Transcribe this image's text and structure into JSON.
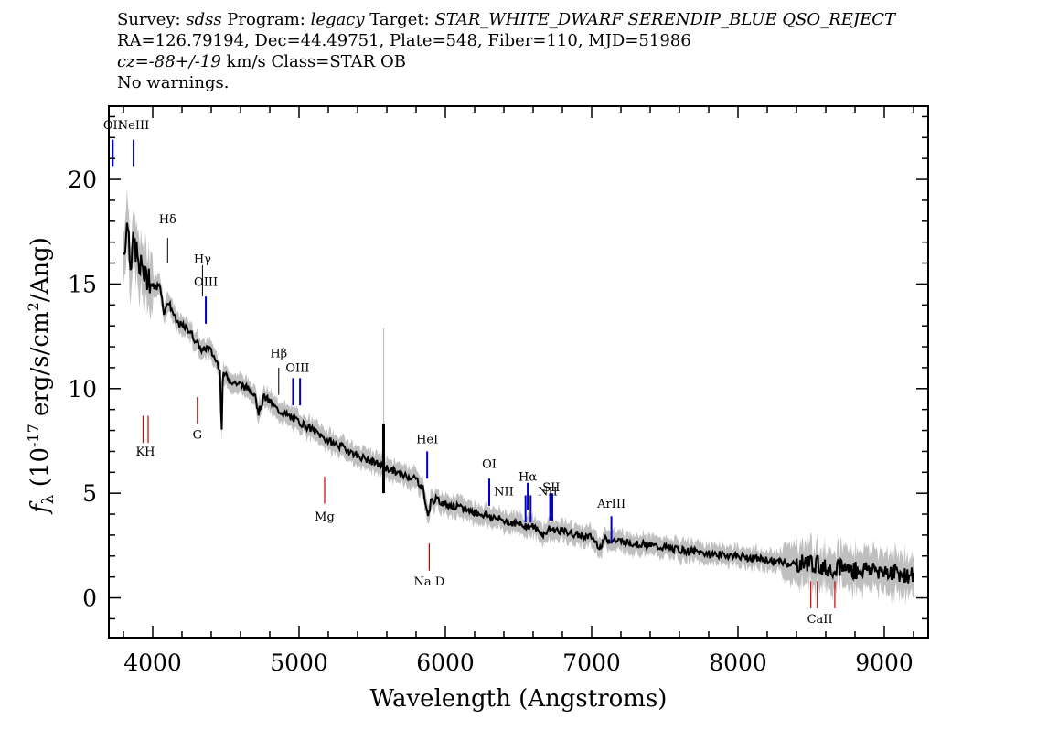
{
  "header": {
    "survey_label": "Survey:",
    "survey": "sdss",
    "program_label": "Program:",
    "program": "legacy",
    "target_label": "Target:",
    "target": "STAR_WHITE_DWARF SERENDIP_BLUE QSO_REJECT",
    "line2": "RA=126.79194, Dec=44.49751, Plate=548, Fiber=110, MJD=51986",
    "cz_label": "cz=",
    "cz_value": "-88+/-19",
    "cz_rest": " km/s Class=STAR OB",
    "line4": "No warnings."
  },
  "colors": {
    "spectrum": "#000000",
    "noise": "#bfbfbf",
    "emission_line": "#0000cc",
    "absorption_line": "#cc0000"
  },
  "chart_data": {
    "type": "line",
    "xlabel": "Wavelength (Angstroms)",
    "ylabel_prefix": "f",
    "ylabel_sub": "λ",
    "ylabel_units": " (10",
    "ylabel_exp": "-17",
    "ylabel_units2": " erg/s/cm",
    "ylabel_exp2": "2",
    "ylabel_units3": "/Ang)",
    "xlim": [
      3700,
      9300
    ],
    "ylim": [
      -1.9,
      23.5
    ],
    "xticks": [
      4000,
      5000,
      6000,
      7000,
      8000,
      9000
    ],
    "yticks": [
      0,
      5,
      10,
      15,
      20
    ],
    "series": [
      {
        "x": [
          3800,
          3830,
          3850,
          3870,
          3890,
          3910,
          3930,
          3950,
          3970,
          3990,
          4020,
          4050,
          4080,
          4100,
          4130,
          4160,
          4200,
          4250,
          4300,
          4340,
          4380,
          4420,
          4460,
          4470,
          4480,
          4500,
          4550,
          4600,
          4650,
          4700,
          4720,
          4760,
          4800,
          4850,
          4900,
          4950,
          5000,
          5100,
          5200,
          5300,
          5400,
          5500,
          5600,
          5700,
          5800,
          5850,
          5870,
          5890,
          5900,
          5930,
          6000,
          6100,
          6200,
          6300,
          6400,
          6500,
          6600,
          6680,
          6700,
          6800,
          6900,
          7000,
          7060,
          7080,
          7200,
          7400,
          7600,
          7800,
          8000,
          8200,
          8400,
          8500,
          8600,
          8700,
          8800,
          8900,
          9000,
          9100,
          9200
        ],
        "y": [
          16.5,
          18.0,
          16.0,
          17.0,
          16.5,
          15.5,
          16.0,
          15.2,
          15.5,
          15.0,
          14.8,
          15.0,
          13.5,
          14.2,
          13.8,
          13.2,
          13.0,
          12.8,
          12.2,
          11.8,
          12.0,
          11.5,
          11.0,
          7.5,
          10.8,
          10.6,
          10.3,
          10.2,
          10.0,
          9.8,
          8.8,
          9.6,
          9.4,
          9.0,
          8.8,
          8.6,
          8.4,
          8.0,
          7.5,
          7.2,
          6.8,
          6.5,
          6.2,
          5.9,
          5.7,
          5.2,
          4.2,
          4.0,
          4.6,
          4.7,
          4.5,
          4.3,
          4.1,
          3.9,
          3.7,
          3.5,
          3.4,
          3.0,
          3.3,
          3.2,
          3.0,
          2.9,
          2.4,
          2.8,
          2.7,
          2.5,
          2.3,
          2.1,
          2.0,
          1.8,
          1.6,
          1.7,
          1.4,
          1.5,
          1.3,
          1.4,
          1.3,
          1.2,
          1.0
        ]
      }
    ],
    "emission_lines": [
      {
        "label": "OII",
        "x": 3727,
        "y_top": 21.9,
        "y_bot": 20.6
      },
      {
        "label": "NeIII",
        "x": 3869,
        "y_top": 21.9,
        "y_bot": 20.6
      },
      {
        "label": "OIII",
        "x": 4363,
        "y_top": 14.4,
        "y_bot": 13.1
      },
      {
        "label": "OIII",
        "x": 4959,
        "y_top": 10.5,
        "y_bot": 9.2
      },
      {
        "label": "OIII",
        "x": 5007,
        "y_top": 10.5,
        "y_bot": 9.2
      },
      {
        "label": "HeI",
        "x": 5876,
        "y_top": 7.0,
        "y_bot": 5.7
      },
      {
        "label": "OI",
        "x": 6300,
        "y_top": 5.7,
        "y_bot": 4.4
      },
      {
        "label": "NII",
        "x": 6548,
        "y_top": 4.9,
        "y_bot": 3.6
      },
      {
        "label": "Hα",
        "x": 6563,
        "y_top": 5.5,
        "y_bot": 4.2
      },
      {
        "label": "NII",
        "x": 6583,
        "y_top": 4.9,
        "y_bot": 3.6
      },
      {
        "label": "SII",
        "x": 6716,
        "y_top": 5.0,
        "y_bot": 3.7
      },
      {
        "label": "SII",
        "x": 6731,
        "y_top": 5.0,
        "y_bot": 3.7
      },
      {
        "label": "ArIII",
        "x": 7135,
        "y_top": 3.9,
        "y_bot": 2.6
      }
    ],
    "emission_labels": [
      {
        "text": "OII",
        "x": 3727,
        "y": 22.4
      },
      {
        "text": "NeIII",
        "x": 3869,
        "y": 22.4
      },
      {
        "text": "Hδ",
        "x": 4102,
        "y": 17.9
      },
      {
        "text": "Hγ",
        "x": 4340,
        "y": 16.0
      },
      {
        "text": "OIII",
        "x": 4363,
        "y": 14.9
      },
      {
        "text": "Hβ",
        "x": 4861,
        "y": 11.5
      },
      {
        "text": "OIII",
        "x": 4990,
        "y": 10.8
      },
      {
        "text": "HeI",
        "x": 5876,
        "y": 7.4
      },
      {
        "text": "OI",
        "x": 6300,
        "y": 6.2
      },
      {
        "text": "NII",
        "x": 6400,
        "y": 4.9
      },
      {
        "text": "Hα",
        "x": 6563,
        "y": 5.6
      },
      {
        "text": "NII",
        "x": 6700,
        "y": 4.9
      },
      {
        "text": "SII",
        "x": 6724,
        "y": 5.1
      },
      {
        "text": "ArIII",
        "x": 7135,
        "y": 4.3
      }
    ],
    "balmer_lines": [
      {
        "label": "Hδ",
        "x": 4102,
        "y_top": 17.2,
        "y_bot": 16.0
      },
      {
        "label": "Hγ",
        "x": 4340,
        "y_top": 15.9,
        "y_bot": 14.4
      },
      {
        "label": "Hβ",
        "x": 4861,
        "y_top": 11.0,
        "y_bot": 9.7
      }
    ],
    "absorption_lines": [
      {
        "label": "K",
        "x": 3934,
        "y_top": 8.7,
        "y_bot": 7.4
      },
      {
        "label": "H",
        "x": 3969,
        "y_top": 8.7,
        "y_bot": 7.4
      },
      {
        "label": "G",
        "x": 4305,
        "y_top": 9.6,
        "y_bot": 8.3
      },
      {
        "label": "Mg",
        "x": 5175,
        "y_top": 5.8,
        "y_bot": 4.5
      },
      {
        "label": "Na D",
        "x": 5890,
        "y_top": 2.6,
        "y_bot": 1.3
      },
      {
        "label": "CaII",
        "x": 8498,
        "y_top": 0.8,
        "y_bot": -0.5
      },
      {
        "label": "CaII",
        "x": 8542,
        "y_top": 0.8,
        "y_bot": -0.5
      },
      {
        "label": "CaII",
        "x": 8662,
        "y_top": 0.8,
        "y_bot": -0.5
      }
    ],
    "absorption_labels": [
      {
        "text": "KH",
        "x": 3950,
        "y": 6.8
      },
      {
        "text": "G",
        "x": 4305,
        "y": 7.6
      },
      {
        "text": "Mg",
        "x": 5175,
        "y": 3.7
      },
      {
        "text": "Na D",
        "x": 5890,
        "y": 0.6
      },
      {
        "text": "CaII",
        "x": 8560,
        "y": -1.2
      }
    ]
  }
}
